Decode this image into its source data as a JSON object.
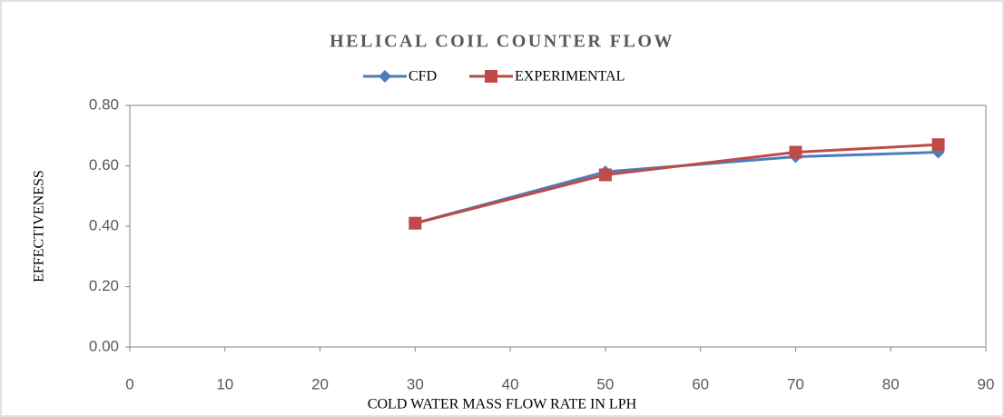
{
  "chart_data": {
    "type": "line",
    "title": "HELICAL COIL COUNTER FLOW",
    "xlabel": "COLD WATER MASS FLOW RATE IN LPH",
    "ylabel": "EFFECTIVENESS",
    "x": [
      30,
      50,
      70,
      85
    ],
    "series": [
      {
        "name": "CFD",
        "color": "#4a7ebb",
        "marker": "diamond",
        "values": [
          0.41,
          0.58,
          0.63,
          0.645
        ]
      },
      {
        "name": "EXPERIMENTAL",
        "color": "#be4b48",
        "marker": "square",
        "values": [
          0.41,
          0.57,
          0.645,
          0.67
        ]
      }
    ],
    "xlim": [
      0,
      90
    ],
    "xticks": [
      0,
      10,
      20,
      30,
      40,
      50,
      60,
      70,
      80,
      90
    ],
    "ylim": [
      0,
      0.8
    ],
    "yticks": [
      {
        "value": 0,
        "label": "0.00"
      },
      {
        "value": 0.2,
        "label": "0.20"
      },
      {
        "value": 0.4,
        "label": "0.40"
      },
      {
        "value": 0.6,
        "label": "0.60"
      },
      {
        "value": 0.8,
        "label": "0.80"
      }
    ],
    "legend": "top",
    "grid": false
  }
}
